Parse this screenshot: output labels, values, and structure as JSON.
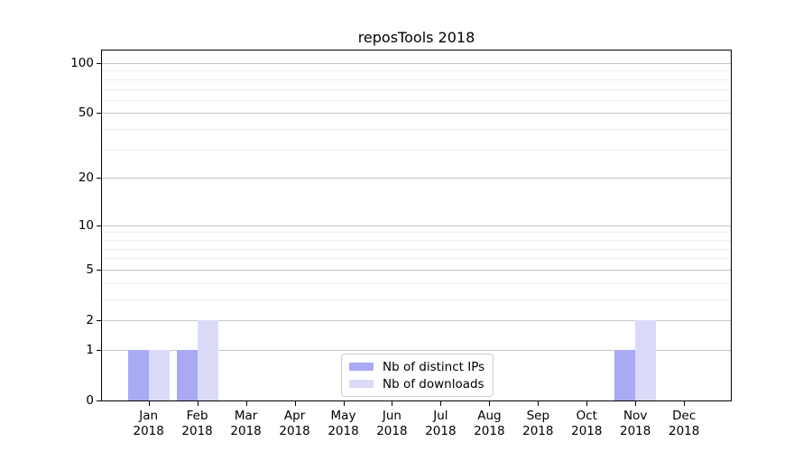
{
  "figure": {
    "background": "#ffffff"
  },
  "chart_data": {
    "type": "bar",
    "title": "reposTools 2018",
    "categories": [
      "Jan\n2018",
      "Feb\n2018",
      "Mar\n2018",
      "Apr\n2018",
      "May\n2018",
      "Jun\n2018",
      "Jul\n2018",
      "Aug\n2018",
      "Sep\n2018",
      "Oct\n2018",
      "Nov\n2018",
      "Dec\n2018"
    ],
    "series": [
      {
        "name": "Nb of distinct IPs",
        "color": "#a9a9f4",
        "values": [
          1,
          1,
          0,
          0,
          0,
          0,
          0,
          0,
          0,
          0,
          1,
          0
        ]
      },
      {
        "name": "Nb of downloads",
        "color": "#dadaf8",
        "values": [
          1,
          2,
          0,
          0,
          0,
          0,
          0,
          0,
          0,
          0,
          2,
          0
        ]
      }
    ],
    "xlabel": "",
    "ylabel": "",
    "yscale": "log10(1+y)",
    "ylim": [
      0,
      119
    ],
    "yticks": [
      0,
      1,
      2,
      5,
      10,
      20,
      50,
      100
    ],
    "yticks_minor": [
      3,
      4,
      6,
      7,
      8,
      9,
      30,
      40,
      60,
      70,
      80,
      90
    ],
    "grid": "horizontal",
    "legend": {
      "position": "lower-center-inside",
      "entries": [
        "Nb of distinct IPs",
        "Nb of downloads"
      ]
    }
  },
  "colors": {
    "major_grid": "#c6c6c6",
    "minor_grid": "#ededed",
    "axis": "#000000",
    "text": "#000000",
    "bar_distinct_ips": "#a9a9f4",
    "bar_downloads": "#dadaf8"
  }
}
